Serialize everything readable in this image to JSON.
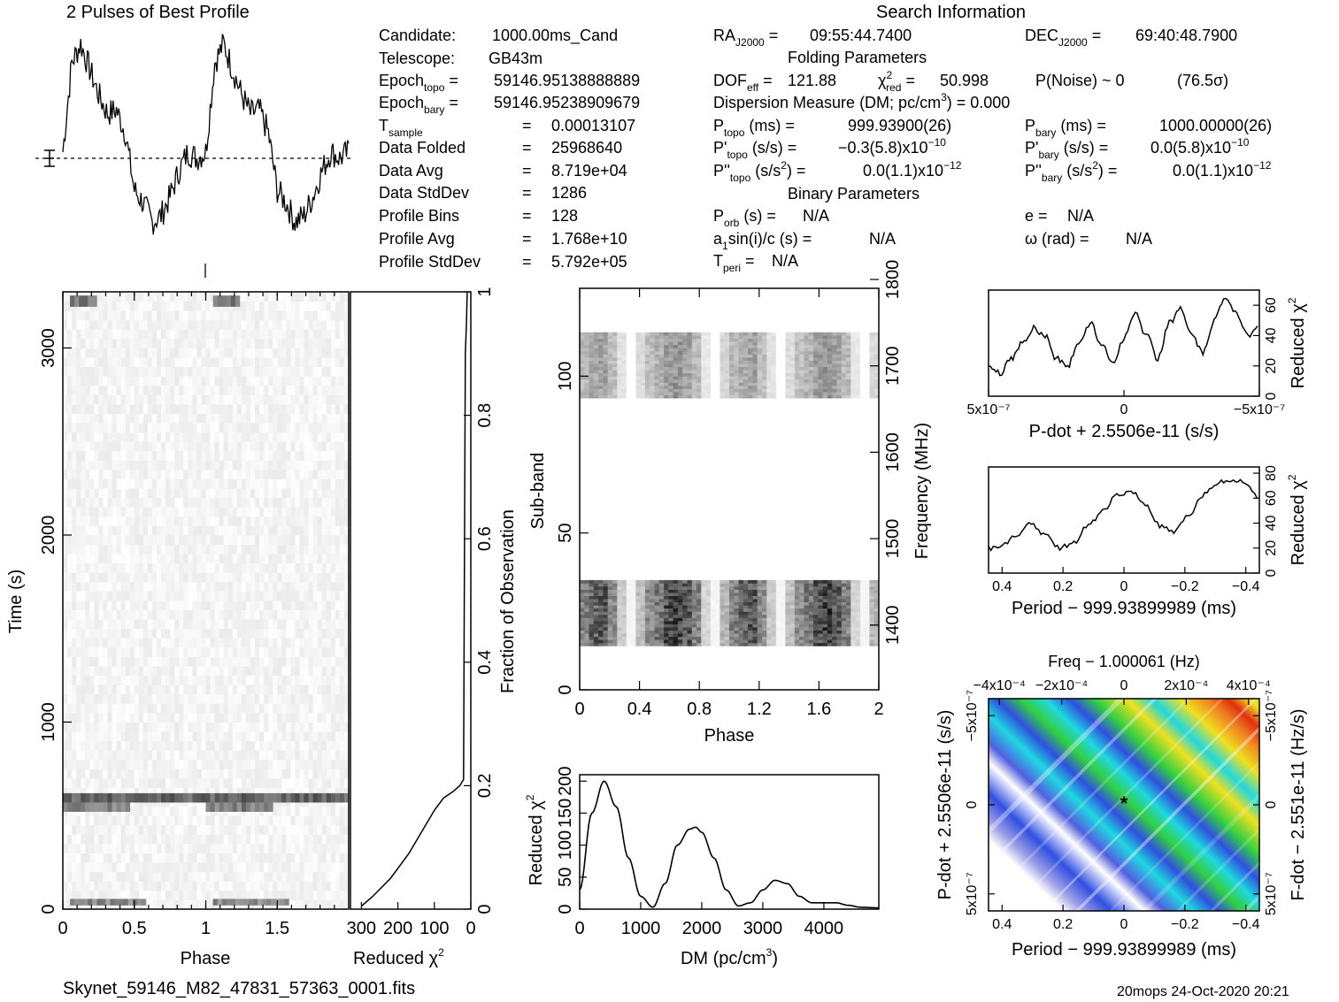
{
  "title": "2 Pulses of Best Profile",
  "search_info_title": "Search Information",
  "filename": "Skynet_59146_M82_47831_57363_0001.fits",
  "footer": "20mops 24-Oct-2020 20:21",
  "candidate": {
    "candidate": "1000.00ms_Cand",
    "telescope": "GB43m",
    "epoch_topo": "59146.95138888889",
    "epoch_bary": "59146.95238909679",
    "t_sample": "0.00013107",
    "data_folded": "25968640",
    "data_avg": "8.719e+04",
    "data_stddev": "1286",
    "profile_bins": "128",
    "profile_avg": "1.768e+10",
    "profile_stddev": "5.792e+05"
  },
  "search": {
    "ra": "09:55:44.7400",
    "dec": "69:40:48.7900",
    "folding_title": "Folding Parameters",
    "dof_eff": "121.88",
    "chi2_red": "50.998",
    "p_noise": "P(Noise) ~ 0",
    "sigma": "(76.5σ)",
    "dm_label": "Dispersion Measure (DM; pc/cm",
    "dm_value": ") = 0.000",
    "p_topo": "999.93900(26)",
    "p_bary": "1000.00000(26)",
    "pd_topo": "−0.3(5.8)x10",
    "pd_topo_exp": "−10",
    "pd_bary": "0.0(5.8)x10",
    "pd_bary_exp": "−10",
    "pdd_topo": "0.0(1.1)x10",
    "pdd_topo_exp": "−12",
    "pdd_bary": "0.0(1.1)x10",
    "pdd_bary_exp": "−12",
    "binary_title": "Binary Parameters",
    "p_orb": "N/A",
    "e": "N/A",
    "a1sini": "N/A",
    "omega": "N/A",
    "t_peri": "N/A"
  },
  "chart_data": [
    {
      "name": "pulse_profile",
      "type": "line",
      "title": "2 Pulses of Best Profile",
      "x": [
        0,
        0.0625,
        0.125,
        0.1875,
        0.25,
        0.3125,
        0.375,
        0.4375,
        0.5,
        0.5625,
        0.625,
        0.6875,
        0.75,
        0.8125,
        0.875,
        0.9375,
        1.0,
        1.0625,
        1.125,
        1.1875,
        1.25,
        1.3125,
        1.375,
        1.4375,
        1.5,
        1.5625,
        1.625,
        1.6875,
        1.75,
        1.8125,
        1.875,
        1.9375,
        2.0
      ],
      "values": [
        0.05,
        0.75,
        0.9,
        0.7,
        0.5,
        0.35,
        0.38,
        0.2,
        -0.25,
        -0.35,
        -0.5,
        -0.45,
        -0.3,
        -0.1,
        0.05,
        0.0,
        0.05,
        0.75,
        0.9,
        0.7,
        0.5,
        0.35,
        0.38,
        0.2,
        -0.25,
        -0.35,
        -0.5,
        -0.45,
        -0.3,
        -0.1,
        0.05,
        0.0,
        0.05
      ]
    },
    {
      "name": "time_phase",
      "type": "heatmap",
      "xlabel": "Phase",
      "ylabel": "Time (s)",
      "x_ticks": [
        "0",
        "0.5",
        "1",
        "1.5"
      ],
      "y_ticks": [
        "0",
        "1000",
        "2000",
        "3000"
      ],
      "xlim": [
        0,
        2
      ],
      "ylim": [
        0,
        3300
      ],
      "dark_rows": [
        {
          "t0": 3220,
          "t1": 3280,
          "phase": [
            [
              0.05,
              0.22
            ],
            [
              1.05,
              1.22
            ]
          ],
          "level": 0.55
        },
        {
          "t0": 570,
          "t1": 620,
          "phase": [
            [
              0.0,
              2.0
            ]
          ],
          "level": 0.6
        },
        {
          "t0": 520,
          "t1": 570,
          "phase": [
            [
              0.0,
              0.45
            ],
            [
              1.0,
              1.45
            ]
          ],
          "level": 0.5
        },
        {
          "t0": 20,
          "t1": 55,
          "phase": [
            [
              0.05,
              0.58
            ],
            [
              1.05,
              1.58
            ]
          ],
          "level": 0.45
        }
      ]
    },
    {
      "name": "time_chi2",
      "type": "line",
      "xlabel": "Reduced χ²",
      "ylabel": "Fraction of Observation",
      "x_ticks": [
        "300",
        "200",
        "100",
        "0"
      ],
      "y_ticks": [
        "0",
        "0.2",
        "0.4",
        "0.6",
        "0.8",
        "1"
      ],
      "xlim": [
        330,
        0
      ],
      "ylim": [
        0,
        1
      ],
      "x": [
        300,
        270,
        220,
        170,
        130,
        100,
        75,
        50,
        30,
        20,
        18,
        15,
        12,
        10
      ],
      "y": [
        0.005,
        0.02,
        0.05,
        0.09,
        0.13,
        0.16,
        0.18,
        0.19,
        0.2,
        0.21,
        0.5,
        0.9,
        0.95,
        1.0
      ]
    },
    {
      "name": "subband_phase",
      "type": "heatmap",
      "xlabel": "Phase",
      "ylabel": "Sub-band",
      "y2label": "Frequency (MHz)",
      "x_ticks": [
        "0",
        "0.4",
        "0.8",
        "1.2",
        "1.6",
        "2"
      ],
      "y_ticks": [
        "0",
        "50",
        "100"
      ],
      "y2_ticks": [
        "1400",
        "1500",
        "1600",
        "1700",
        "1800"
      ],
      "xlim": [
        0,
        2
      ],
      "ylim": [
        0,
        128
      ]
    },
    {
      "name": "dm_chi2",
      "type": "line",
      "xlabel": "DM (pc/cm³)",
      "ylabel": "Reduced χ²",
      "x_ticks": [
        "0",
        "1000",
        "2000",
        "3000",
        "4000"
      ],
      "y_ticks": [
        "0",
        "50",
        "100",
        "150",
        "200"
      ],
      "xlim": [
        0,
        4900
      ],
      "ylim": [
        0,
        210
      ],
      "x": [
        0,
        200,
        400,
        600,
        800,
        1000,
        1200,
        1400,
        1600,
        1800,
        1900,
        2000,
        2200,
        2400,
        2600,
        2800,
        3000,
        3200,
        3400,
        3600,
        3800,
        4000,
        4200,
        4400,
        4600,
        4900
      ],
      "values": [
        30,
        150,
        200,
        160,
        80,
        20,
        3,
        40,
        100,
        125,
        128,
        120,
        80,
        30,
        5,
        10,
        30,
        45,
        40,
        20,
        10,
        10,
        10,
        6,
        3,
        2
      ]
    },
    {
      "name": "pdot_chi2",
      "type": "line",
      "xlabel": "P-dot + 2.5506e-11 (s/s)",
      "ylabel": "Reduced χ²",
      "x_ticks": [
        "5x10⁻⁷",
        "0",
        "−5x10⁻⁷"
      ],
      "y_ticks": [
        "0",
        "20",
        "40",
        "60"
      ],
      "ylim": [
        0,
        70
      ],
      "values": [
        20,
        15,
        25,
        35,
        45,
        40,
        25,
        20,
        35,
        48,
        35,
        22,
        38,
        55,
        40,
        25,
        48,
        58,
        40,
        28,
        50,
        65,
        55,
        40,
        48
      ]
    },
    {
      "name": "period_chi2",
      "type": "line",
      "xlabel": "Period − 999.93899989 (ms)",
      "ylabel": "Reduced χ²",
      "x_ticks": [
        "0.4",
        "0.2",
        "0",
        "−0.2",
        "−0.4"
      ],
      "y_ticks": [
        "0",
        "20",
        "40",
        "60",
        "80"
      ],
      "ylim": [
        0,
        85
      ],
      "values": [
        20,
        22,
        30,
        40,
        30,
        20,
        25,
        38,
        50,
        62,
        65,
        55,
        38,
        32,
        45,
        62,
        72,
        75,
        73,
        60
      ]
    },
    {
      "name": "pdot_period_map",
      "type": "heatmap",
      "title": "Freq − 1.000061 (Hz)",
      "xlabel": "Period − 999.93899989 (ms)",
      "ylabel": "P-dot + 2.5506e-11 (s/s)",
      "y2label": "F-dot − 2.551e-11 (Hz/s)",
      "x_ticks": [
        "0.4",
        "0.2",
        "0",
        "−0.2",
        "−0.4"
      ],
      "x2_ticks": [
        "−4x10⁻⁴",
        "−2x10⁻⁴",
        "0",
        "2x10⁻⁴",
        "4x10⁻⁴"
      ],
      "y_ticks": [
        "5x10⁻⁷",
        "0",
        "−5x10⁻⁷"
      ],
      "y2_ticks": [
        "−5x10⁻⁷",
        "0",
        "5x10⁻⁷"
      ]
    }
  ],
  "colors": {
    "map_low": "#ffffff",
    "map_mid_blue": "#3050e0",
    "map_cyan": "#20d8e0",
    "map_green": "#30d040",
    "map_yellow": "#f0e020",
    "map_orange": "#f08020",
    "map_red": "#e03010"
  }
}
